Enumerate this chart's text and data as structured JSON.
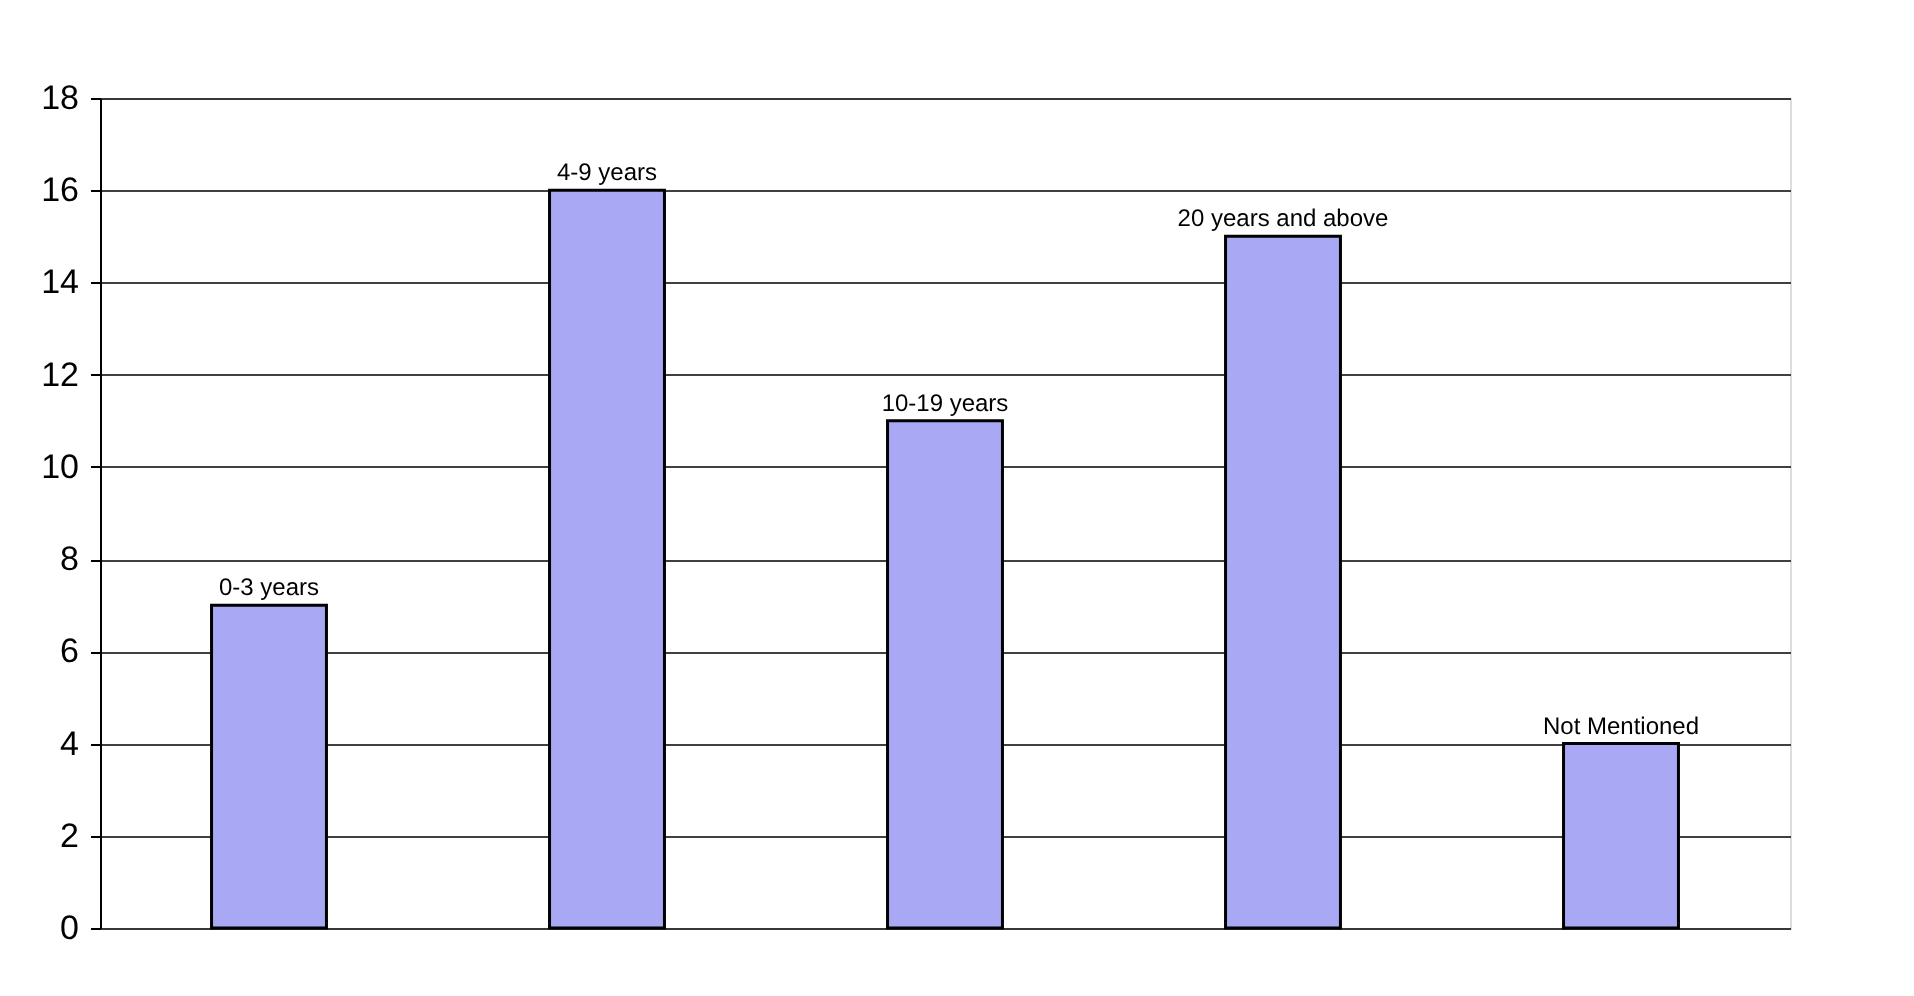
{
  "chart_data": {
    "type": "bar",
    "categories": [
      "0-3 years",
      "4-9 years",
      "10-19 years",
      "20 years and above",
      "Not Mentioned"
    ],
    "values": [
      7,
      16,
      11,
      15,
      4
    ],
    "color": "#a8a8f4",
    "ylim": [
      0,
      18
    ],
    "yticks": [
      0,
      2,
      4,
      6,
      8,
      10,
      12,
      14,
      16,
      18
    ],
    "grid": "y",
    "tick_labels": "y"
  }
}
